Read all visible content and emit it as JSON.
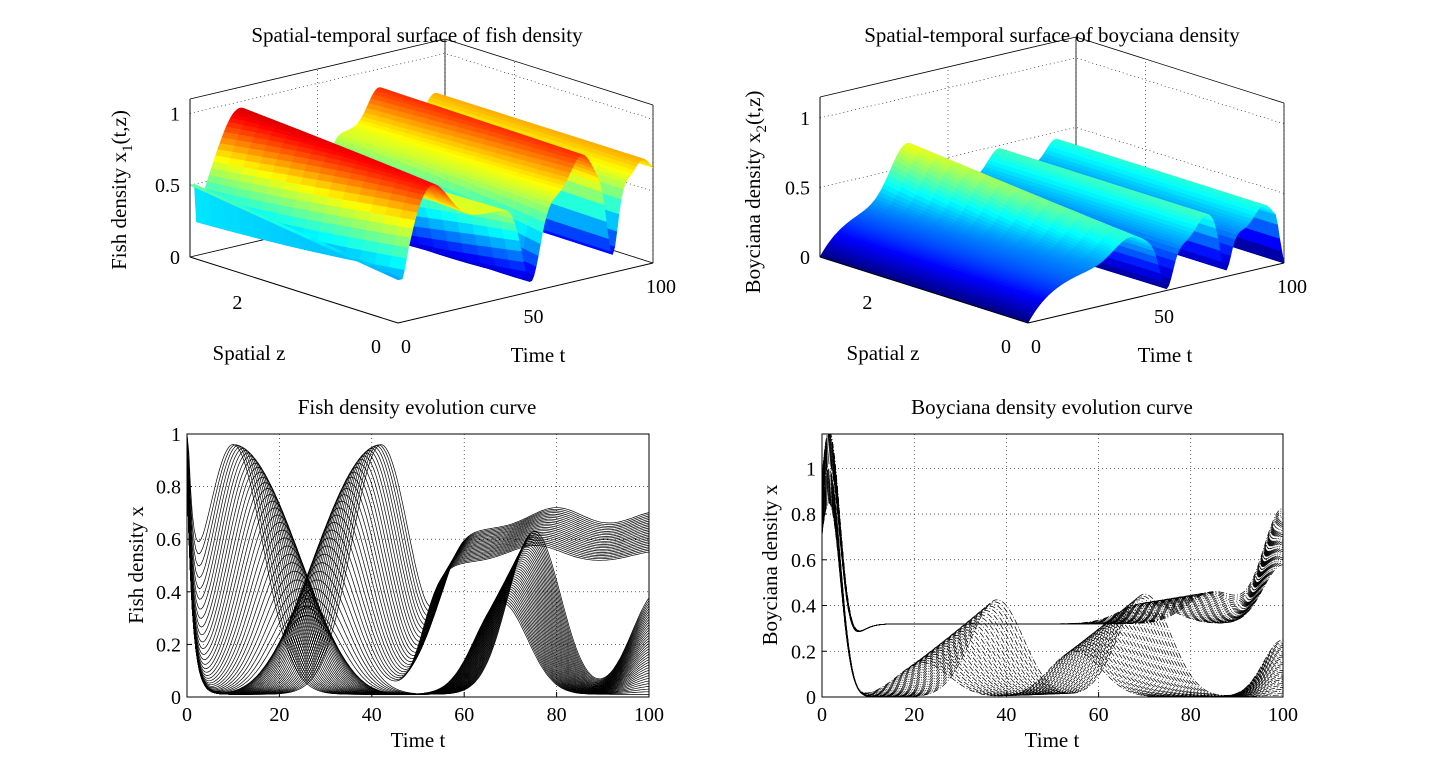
{
  "chart_data": [
    {
      "id": "fish-surface",
      "type": "surface3d",
      "title": "Spatial-temporal surface of fish density",
      "xlabel": "Time t",
      "ylabel": "Spatial z",
      "zlabel_main": "Fish density x",
      "zlabel_sub": "1",
      "zlabel_tail": "(t,z)",
      "xticks": [
        0,
        50,
        100
      ],
      "yticks": [
        0,
        2
      ],
      "zticks": [
        0,
        0.5,
        1
      ],
      "xlim": [
        0,
        100
      ],
      "ylim": [
        0,
        3
      ],
      "zlim": [
        0,
        1.1
      ],
      "colormap": [
        "#00008f",
        "#0000ff",
        "#0080ff",
        "#00ffff",
        "#80ff80",
        "#ffff00",
        "#ff8000",
        "#ff0000",
        "#800000"
      ]
    },
    {
      "id": "boyciana-surface",
      "type": "surface3d",
      "title": "Spatial-temporal surface of boyciana density",
      "xlabel": "Time t",
      "ylabel": "Spatial z",
      "zlabel_main": "Boyciana density x",
      "zlabel_sub": "2",
      "zlabel_tail": "(t,z)",
      "xticks": [
        0,
        50,
        100
      ],
      "yticks": [
        0,
        2
      ],
      "zticks": [
        0,
        0.5,
        1
      ],
      "xlim": [
        0,
        100
      ],
      "ylim": [
        0,
        3
      ],
      "zlim": [
        0,
        1.15
      ]
    },
    {
      "id": "fish-curve",
      "type": "line",
      "title": "Fish density evolution curve",
      "xlabel": "Time t",
      "ylabel": "Fish density x",
      "xlim": [
        0,
        100
      ],
      "ylim": [
        0,
        1
      ],
      "xticks": [
        0,
        20,
        40,
        60,
        80,
        100
      ],
      "yticks": [
        0,
        0.2,
        0.4,
        0.6,
        0.8,
        1
      ],
      "ytick_labels": [
        "0",
        "0.2",
        "0.4",
        "0.6",
        "0.8",
        "1"
      ],
      "grid": true,
      "line_style": "solid",
      "series_count": 61
    },
    {
      "id": "boyciana-curve",
      "type": "line",
      "title": "Boyciana density evolution curve",
      "xlabel": "Time t",
      "ylabel": "Boyciana density x",
      "xlim": [
        0,
        100
      ],
      "ylim": [
        0,
        1.15
      ],
      "xticks": [
        0,
        20,
        40,
        60,
        80,
        100
      ],
      "yticks": [
        0,
        0.2,
        0.4,
        0.6,
        0.8,
        1
      ],
      "ytick_labels": [
        "0",
        "0.2",
        "0.4",
        "0.6",
        "0.8",
        "1"
      ],
      "grid": true,
      "line_style": "dash-dot",
      "series_count": 61
    }
  ]
}
